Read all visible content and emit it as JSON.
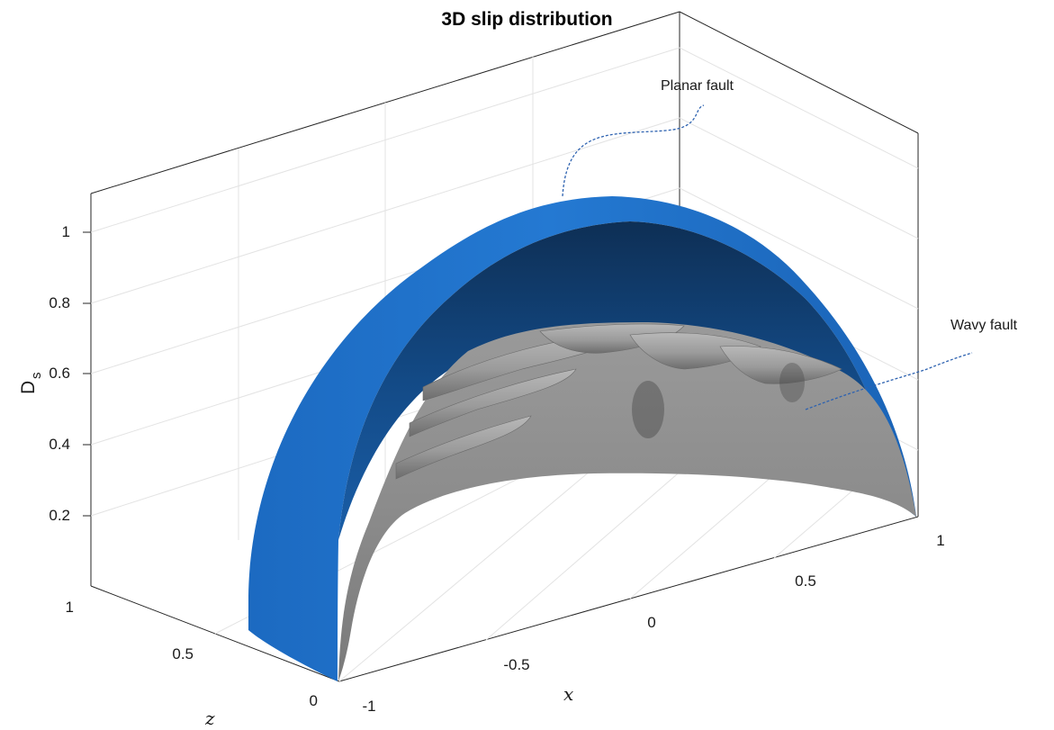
{
  "chart_data": {
    "type": "surface",
    "title": "3D slip distribution",
    "xlabel": "x",
    "zlabel": "z",
    "ylabel_main": "D",
    "ylabel_sub": "s",
    "x_ticks": [
      "-1",
      "-0.5",
      "0",
      "0.5",
      "1"
    ],
    "z_ticks": [
      "0",
      "0.5",
      "1"
    ],
    "d_ticks": [
      "0.2",
      "0.4",
      "0.6",
      "0.8",
      "1"
    ],
    "x_range": [
      -1,
      1
    ],
    "z_range": [
      0,
      1
    ],
    "d_range": [
      0,
      1.1
    ],
    "grid": true,
    "series": [
      {
        "name": "Planar fault",
        "peak_slip": 1.0,
        "color": "#1f6fc4"
      },
      {
        "name": "Wavy fault",
        "peak_slip": 0.6,
        "color": "#8a8a8a"
      }
    ],
    "annotations": [
      "Planar fault",
      "Wavy fault"
    ]
  }
}
